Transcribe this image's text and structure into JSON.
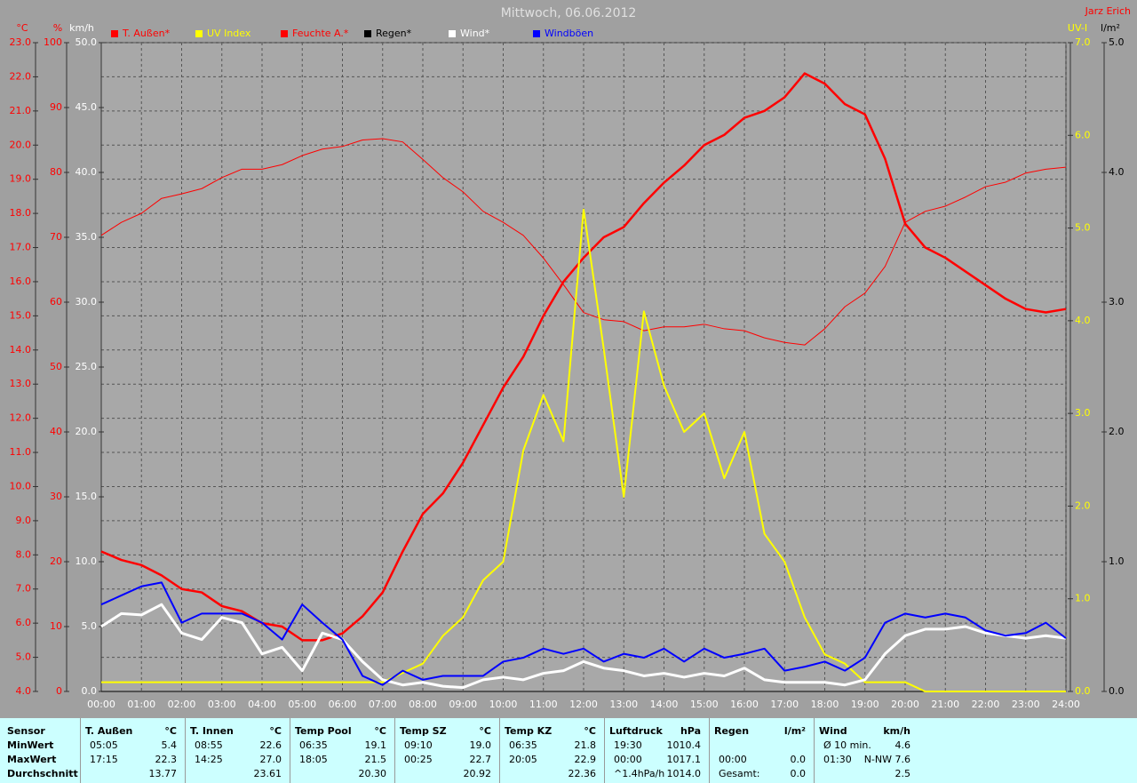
{
  "chart_data": {
    "type": "line",
    "title": "Mittwoch, 06.06.2012",
    "credit": "Jarz Erich",
    "grid": true,
    "x": [
      0,
      0.5,
      1,
      1.5,
      2,
      2.5,
      3,
      3.5,
      4,
      4.5,
      5,
      5.5,
      6,
      6.5,
      7,
      7.5,
      8,
      8.5,
      9,
      9.5,
      10,
      10.5,
      11,
      11.5,
      12,
      12.5,
      13,
      13.5,
      14,
      14.5,
      15,
      15.5,
      16,
      16.5,
      17,
      17.5,
      18,
      18.5,
      19,
      19.5,
      20,
      20.5,
      21,
      21.5,
      22,
      22.5,
      23,
      23.5,
      24
    ],
    "xlim": [
      0,
      24
    ],
    "xticks": [
      {
        "value": 0,
        "label": "00:00"
      },
      {
        "value": 1,
        "label": "01:00"
      },
      {
        "value": 2,
        "label": "02:00"
      },
      {
        "value": 3,
        "label": "03:00"
      },
      {
        "value": 4,
        "label": "04:00"
      },
      {
        "value": 5,
        "label": "05:00"
      },
      {
        "value": 6,
        "label": "06:00"
      },
      {
        "value": 7,
        "label": "07:00"
      },
      {
        "value": 8,
        "label": "08:00"
      },
      {
        "value": 9,
        "label": "09:00"
      },
      {
        "value": 10,
        "label": "10:00"
      },
      {
        "value": 11,
        "label": "11:00"
      },
      {
        "value": 12,
        "label": "12:00"
      },
      {
        "value": 13,
        "label": "13:00"
      },
      {
        "value": 14,
        "label": "14:00"
      },
      {
        "value": 15,
        "label": "15:00"
      },
      {
        "value": 16,
        "label": "16:00"
      },
      {
        "value": 17,
        "label": "17:00"
      },
      {
        "value": 18,
        "label": "18:00"
      },
      {
        "value": 19,
        "label": "19:00"
      },
      {
        "value": 20,
        "label": "20:00"
      },
      {
        "value": 21,
        "label": "21:00"
      },
      {
        "value": 22,
        "label": "22:00"
      },
      {
        "value": 23,
        "label": "23:00"
      },
      {
        "value": 24,
        "label": "24:00"
      }
    ],
    "axes": [
      {
        "label": "°C",
        "color": "#ff0000",
        "lim": [
          4,
          23
        ],
        "ticks": [
          {
            "value": 4,
            "label": "4.0"
          },
          {
            "value": 5,
            "label": "5.0"
          },
          {
            "value": 6,
            "label": "6.0"
          },
          {
            "value": 7,
            "label": "7.0"
          },
          {
            "value": 8,
            "label": "8.0"
          },
          {
            "value": 9,
            "label": "9.0"
          },
          {
            "value": 10,
            "label": "10.0"
          },
          {
            "value": 11,
            "label": "11.0"
          },
          {
            "value": 12,
            "label": "12.0"
          },
          {
            "value": 13,
            "label": "13.0"
          },
          {
            "value": 14,
            "label": "14.0"
          },
          {
            "value": 15,
            "label": "15.0"
          },
          {
            "value": 16,
            "label": "16.0"
          },
          {
            "value": 17,
            "label": "17.0"
          },
          {
            "value": 18,
            "label": "18.0"
          },
          {
            "value": 19,
            "label": "19.0"
          },
          {
            "value": 20,
            "label": "20.0"
          },
          {
            "value": 21,
            "label": "21.0"
          },
          {
            "value": 22,
            "label": "22.0"
          },
          {
            "value": 23,
            "label": "23.0"
          }
        ]
      },
      {
        "label": "%",
        "color": "#ff0000",
        "lim": [
          0,
          100
        ],
        "ticks": [
          0,
          10,
          20,
          30,
          40,
          50,
          60,
          70,
          80,
          90,
          100
        ]
      },
      {
        "label": "km/h",
        "color": "#ffffff",
        "lim": [
          0,
          50
        ],
        "ticks": [
          {
            "value": 0,
            "label": "0.0"
          },
          {
            "value": 5,
            "label": "5.0"
          },
          {
            "value": 10,
            "label": "10.0"
          },
          {
            "value": 15,
            "label": "15.0"
          },
          {
            "value": 20,
            "label": "20.0"
          },
          {
            "value": 25,
            "label": "25.0"
          },
          {
            "value": 30,
            "label": "30.0"
          },
          {
            "value": 35,
            "label": "35.0"
          },
          {
            "value": 40,
            "label": "40.0"
          },
          {
            "value": 45,
            "label": "45.0"
          },
          {
            "value": 50,
            "label": "50.0"
          }
        ]
      },
      {
        "label": "UV-I",
        "color": "#ffff00",
        "lim": [
          0,
          7
        ],
        "ticks": [
          {
            "value": 0,
            "label": "0.0"
          },
          {
            "value": 1,
            "label": "1.0"
          },
          {
            "value": 2,
            "label": "2.0"
          },
          {
            "value": 3,
            "label": "3.0"
          },
          {
            "value": 4,
            "label": "4.0"
          },
          {
            "value": 5,
            "label": "5.0"
          },
          {
            "value": 6,
            "label": "6.0"
          },
          {
            "value": 7,
            "label": "7.0"
          }
        ]
      },
      {
        "label": "l/m²",
        "color": "#000000",
        "lim": [
          0,
          5
        ],
        "ticks": [
          {
            "value": 0,
            "label": "0.0"
          },
          {
            "value": 1,
            "label": "1.0"
          },
          {
            "value": 2,
            "label": "2.0"
          },
          {
            "value": 3,
            "label": "3.0"
          },
          {
            "value": 4,
            "label": "4.0"
          },
          {
            "value": 5,
            "label": "5.0"
          }
        ]
      }
    ],
    "series": [
      {
        "name": "T. Außen*",
        "color": "#ff0000",
        "axis": 0,
        "width": 2.5,
        "values": [
          8.1,
          7.85,
          7.7,
          7.4,
          7.0,
          6.9,
          6.5,
          6.35,
          6.0,
          5.9,
          5.5,
          5.5,
          5.7,
          6.2,
          6.9,
          8.1,
          9.2,
          9.8,
          10.7,
          11.8,
          12.9,
          13.8,
          15.0,
          16.0,
          16.7,
          17.3,
          17.6,
          18.3,
          18.9,
          19.4,
          20.0,
          20.3,
          20.8,
          21.0,
          21.4,
          22.1,
          21.8,
          21.2,
          20.9,
          19.6,
          17.7,
          17.0,
          16.7,
          16.3,
          15.9,
          15.5,
          15.2,
          15.1,
          15.2
        ]
      },
      {
        "name": "UV Index",
        "color": "#ffff00",
        "axis": 3,
        "width": 2,
        "values": [
          0.1,
          0.1,
          0.1,
          0.1,
          0.1,
          0.1,
          0.1,
          0.1,
          0.1,
          0.1,
          0.1,
          0.1,
          0.1,
          0.1,
          0.1,
          0.2,
          0.3,
          0.6,
          0.8,
          1.2,
          1.4,
          2.6,
          3.2,
          2.7,
          5.2,
          3.7,
          2.1,
          4.1,
          3.3,
          2.8,
          3.0,
          2.3,
          2.8,
          1.7,
          1.4,
          0.8,
          0.4,
          0.3,
          0.1,
          0.1,
          0.1,
          0,
          0,
          0,
          0,
          0,
          0,
          0,
          0
        ]
      },
      {
        "name": "Feuchte A.*",
        "color": "#ff0000",
        "axis": 1,
        "width": 1,
        "values": [
          70.3,
          72.3,
          73.7,
          76,
          76.7,
          77.5,
          79.2,
          80.5,
          80.5,
          81.2,
          82.6,
          83.6,
          84,
          85,
          85.2,
          84.7,
          82,
          79.2,
          77,
          74,
          72.3,
          70.3,
          66.8,
          62.7,
          58.4,
          57.3,
          57,
          55.6,
          56.2,
          56.2,
          56.6,
          55.9,
          55.6,
          54.5,
          53.8,
          53.4,
          55.9,
          59.3,
          61.4,
          65.5,
          72.3,
          74,
          74.8,
          76.2,
          77.8,
          78.5,
          79.9,
          80.5,
          80.8
        ]
      },
      {
        "name": "Regen*",
        "color": "#000000",
        "axis": 4,
        "width": 1,
        "values": [
          0,
          0,
          0,
          0,
          0,
          0,
          0,
          0,
          0,
          0,
          0,
          0,
          0,
          0,
          0,
          0,
          0,
          0,
          0,
          0,
          0,
          0,
          0,
          0,
          0,
          0,
          0,
          0,
          0,
          0,
          0,
          0,
          0,
          0,
          0,
          0,
          0,
          0,
          0,
          0,
          0,
          0,
          0,
          0,
          0,
          0,
          0,
          0,
          0
        ]
      },
      {
        "name": "Wind*",
        "color": "#ffffff",
        "axis": 2,
        "width": 3,
        "values": [
          5.0,
          6.0,
          5.9,
          6.7,
          4.5,
          4.0,
          5.7,
          5.3,
          2.9,
          3.4,
          1.6,
          4.5,
          4.0,
          2.3,
          0.9,
          0.5,
          0.7,
          0.4,
          0.3,
          0.9,
          1.1,
          0.9,
          1.4,
          1.6,
          2.3,
          1.8,
          1.6,
          1.2,
          1.4,
          1.1,
          1.4,
          1.2,
          1.8,
          0.9,
          0.7,
          0.7,
          0.7,
          0.5,
          0.9,
          2.9,
          4.3,
          4.8,
          4.8,
          5.0,
          4.5,
          4.3,
          4.1,
          4.3,
          4.1
        ]
      },
      {
        "name": "Windböen",
        "color": "#0000ff",
        "axis": 2,
        "width": 2,
        "values": [
          6.7,
          7.4,
          8.1,
          8.4,
          5.3,
          6.0,
          6.0,
          6.0,
          5.3,
          4.0,
          6.7,
          5.3,
          4.0,
          1.2,
          0.5,
          1.6,
          0.9,
          1.2,
          1.2,
          1.2,
          2.3,
          2.6,
          3.3,
          2.9,
          3.3,
          2.3,
          2.9,
          2.6,
          3.3,
          2.3,
          3.3,
          2.6,
          2.9,
          3.3,
          1.6,
          1.9,
          2.3,
          1.6,
          2.6,
          5.3,
          6.0,
          5.7,
          6.0,
          5.7,
          4.7,
          4.3,
          4.5,
          5.3,
          4.1
        ]
      }
    ]
  },
  "stats": {
    "labels": [
      "Sensor",
      "MinWert",
      "MaxWert",
      "Durchschnitt"
    ],
    "blocks": [
      {
        "name": "T. Außen",
        "unit": "°C",
        "rows": [
          [
            "05:05",
            "5.4"
          ],
          [
            "17:15",
            "22.3"
          ],
          [
            null,
            "13.77"
          ]
        ]
      },
      {
        "name": "T. Innen",
        "unit": "°C",
        "rows": [
          [
            "08:55",
            "22.6"
          ],
          [
            "14:25",
            "27.0"
          ],
          [
            null,
            "23.61"
          ]
        ]
      },
      {
        "name": "Temp Pool",
        "unit": "°C",
        "rows": [
          [
            "06:35",
            "19.1"
          ],
          [
            "18:05",
            "21.5"
          ],
          [
            null,
            "20.30"
          ]
        ]
      },
      {
        "name": "Temp SZ",
        "unit": "°C",
        "rows": [
          [
            "09:10",
            "19.0"
          ],
          [
            "00:25",
            "22.7"
          ],
          [
            null,
            "20.92"
          ]
        ]
      },
      {
        "name": "Temp KZ",
        "unit": "°C",
        "rows": [
          [
            "06:35",
            "21.8"
          ],
          [
            "20:05",
            "22.9"
          ],
          [
            null,
            "22.36"
          ]
        ]
      },
      {
        "name": "Luftdruck",
        "unit": "hPa",
        "rows": [
          [
            "19:30",
            "1010.4"
          ],
          [
            "00:00",
            "1017.1"
          ],
          [
            "^1.4hPa/h",
            "1014.0"
          ]
        ]
      },
      {
        "name": "Regen",
        "unit": "l/m²",
        "rows": [
          [
            null,
            null
          ],
          [
            "00:00",
            "0.0"
          ],
          [
            "Gesamt:",
            "0.0"
          ]
        ]
      },
      {
        "name": "Wind",
        "unit": "km/h",
        "rows": [
          [
            "Ø 10 min.",
            "4.6"
          ],
          [
            "01:30",
            "N-NW 7.6"
          ],
          [
            null,
            "2.5"
          ]
        ]
      }
    ]
  }
}
